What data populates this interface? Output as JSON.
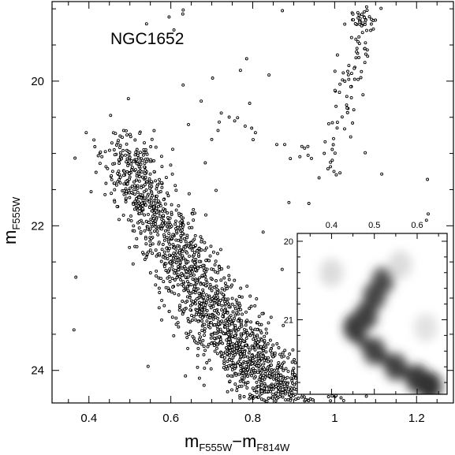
{
  "chart_data": [
    {
      "type": "scatter",
      "title": "",
      "annotation": "NGC1652",
      "xlabel": {
        "main": "m",
        "sub1": "F555W",
        "sep": "−m",
        "sub2": "F814W"
      },
      "ylabel": {
        "main": "m",
        "sub": "F555W"
      },
      "xlim": [
        0.31,
        1.29
      ],
      "ylim": [
        24.45,
        18.9
      ],
      "y_inverted": true,
      "x_ticks": [
        0.4,
        0.6,
        0.8,
        1,
        1.2
      ],
      "x_tick_labels": [
        "0.4",
        "0.6",
        "0.8",
        "1",
        "1.2"
      ],
      "y_ticks": [
        20,
        22,
        24
      ],
      "y_tick_labels": [
        "20",
        "22",
        "24"
      ],
      "grid": false,
      "marker": "open-circle",
      "features": {
        "main_sequence": {
          "points": [
            [
              0.48,
              20.7
            ],
            [
              0.5,
              21.1
            ],
            [
              0.52,
              21.5
            ],
            [
              0.56,
              21.8
            ],
            [
              0.6,
              22.2
            ],
            [
              0.64,
              22.6
            ],
            [
              0.68,
              23.0
            ],
            [
              0.72,
              23.3
            ],
            [
              0.76,
              23.6
            ],
            [
              0.8,
              23.9
            ],
            [
              0.85,
              24.2
            ],
            [
              0.9,
              24.45
            ]
          ],
          "approx_star_count": 1800
        },
        "subgiant_branch": {
          "points": [
            [
              0.65,
              20.5
            ],
            [
              0.75,
              20.6
            ],
            [
              0.88,
              20.85
            ],
            [
              0.95,
              21.0
            ]
          ],
          "approx_star_count": 20
        },
        "red_giant_branch": {
          "points": [
            [
              0.98,
              21.3
            ],
            [
              1.0,
              20.8
            ],
            [
              1.03,
              20.2
            ],
            [
              1.05,
              19.8
            ],
            [
              1.07,
              19.4
            ],
            [
              1.1,
              19.0
            ]
          ],
          "approx_star_count": 80
        },
        "red_clump": {
          "center": [
            1.06,
            19.15
          ],
          "approx_star_count": 25
        }
      }
    },
    {
      "type": "heatmap",
      "description_of": "inset Hess diagram",
      "xlim": [
        0.32,
        0.67
      ],
      "ylim": [
        21.95,
        19.9
      ],
      "y_inverted": true,
      "x_ticks": [
        0.4,
        0.5,
        0.6
      ],
      "x_tick_labels": [
        "0.4",
        "0.5",
        "0.6"
      ],
      "y_ticks": [
        20,
        21
      ],
      "y_tick_labels": [
        "20",
        "21"
      ],
      "colormap": "grayscale",
      "density_features": [
        {
          "x": 0.455,
          "y": 21.1,
          "strength": 0.85
        },
        {
          "x": 0.48,
          "y": 20.95,
          "strength": 0.8
        },
        {
          "x": 0.5,
          "y": 20.7,
          "strength": 0.7
        },
        {
          "x": 0.52,
          "y": 20.5,
          "strength": 0.65
        },
        {
          "x": 0.5,
          "y": 21.4,
          "strength": 0.7
        },
        {
          "x": 0.55,
          "y": 21.6,
          "strength": 0.7
        },
        {
          "x": 0.6,
          "y": 21.75,
          "strength": 0.85
        },
        {
          "x": 0.63,
          "y": 21.85,
          "strength": 1.0
        },
        {
          "x": 0.4,
          "y": 20.4,
          "strength": 0.15
        },
        {
          "x": 0.56,
          "y": 20.3,
          "strength": 0.15
        },
        {
          "x": 0.62,
          "y": 21.1,
          "strength": 0.12
        }
      ]
    }
  ]
}
